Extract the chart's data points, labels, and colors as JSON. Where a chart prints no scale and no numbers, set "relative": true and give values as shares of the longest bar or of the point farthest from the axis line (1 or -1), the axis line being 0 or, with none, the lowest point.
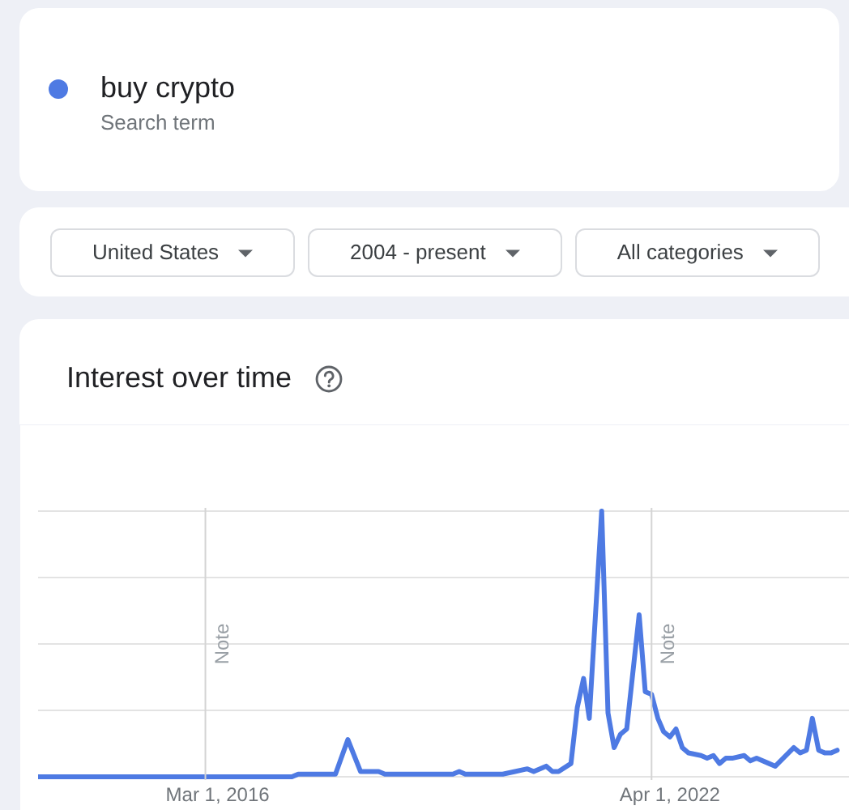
{
  "chart_data": {
    "type": "line",
    "title": "Interest over time",
    "annotations": [
      "Search term",
      "United States",
      "2004 - present",
      "All categories"
    ],
    "relative": true,
    "legend": "top",
    "grid": "y",
    "xlim": [
      "2013-10-01",
      "2024-09-01"
    ],
    "xticks": [
      {
        "value": "2016-03-01",
        "label": "Mar 1, 2016"
      },
      {
        "value": "2022-04-01",
        "label": "Apr 1, 2022"
      }
    ],
    "ref_lines": [
      {
        "axis": "x",
        "value": "2016-01-01",
        "label": "Note"
      },
      {
        "axis": "x",
        "value": "2022-01-01",
        "label": "Note"
      }
    ],
    "x": [
      "2013-10",
      "2017-03",
      "2017-04",
      "2017-10",
      "2017-12",
      "2018-02",
      "2018-05",
      "2018-06",
      "2019-05",
      "2019-06",
      "2019-07",
      "2020-01",
      "2020-03",
      "2020-05",
      "2020-06",
      "2020-08",
      "2020-09",
      "2020-10",
      "2020-12",
      "2021-01",
      "2021-02",
      "2021-03",
      "2021-05",
      "2021-06",
      "2021-07",
      "2021-08",
      "2021-09",
      "2021-11",
      "2021-12",
      "2022-01",
      "2022-02",
      "2022-03",
      "2022-04",
      "2022-05",
      "2022-06",
      "2022-07",
      "2022-09",
      "2022-10",
      "2022-11",
      "2022-12",
      "2023-01",
      "2023-02",
      "2023-04",
      "2023-05",
      "2023-06",
      "2023-08",
      "2023-09",
      "2023-12",
      "2024-01",
      "2024-02",
      "2024-03",
      "2024-04",
      "2024-05",
      "2024-06",
      "2024-07"
    ],
    "series": [
      {
        "name": "buy crypto",
        "color": "#4e7ae3",
        "values": [
          0.0,
          0.0,
          0.01,
          0.01,
          0.14,
          0.02,
          0.02,
          0.01,
          0.01,
          0.02,
          0.01,
          0.01,
          0.02,
          0.03,
          0.02,
          0.04,
          0.02,
          0.02,
          0.05,
          0.26,
          0.37,
          0.22,
          1.0,
          0.24,
          0.11,
          0.16,
          0.18,
          0.61,
          0.32,
          0.31,
          0.22,
          0.17,
          0.15,
          0.18,
          0.11,
          0.09,
          0.08,
          0.07,
          0.08,
          0.05,
          0.07,
          0.07,
          0.08,
          0.06,
          0.07,
          0.05,
          0.04,
          0.11,
          0.09,
          0.1,
          0.22,
          0.1,
          0.09,
          0.09,
          0.1
        ]
      }
    ]
  }
}
